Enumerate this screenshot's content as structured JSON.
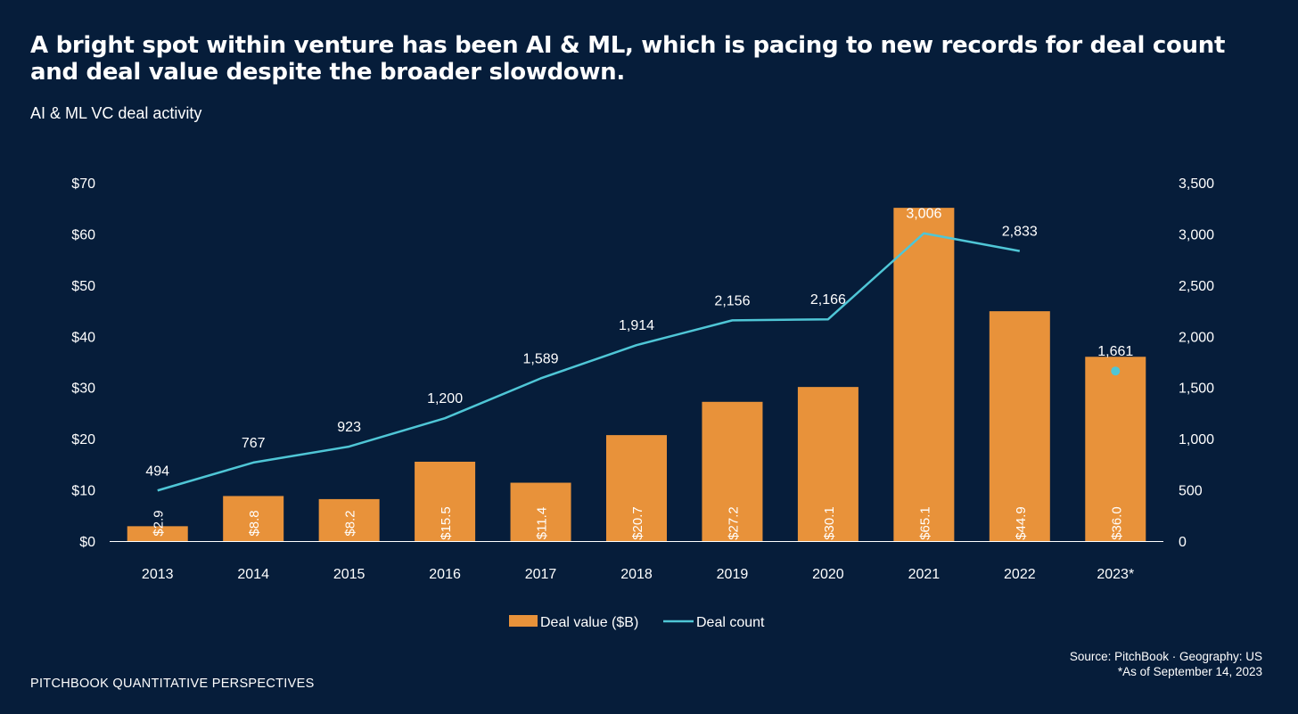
{
  "header": {
    "headline": "A bright spot within venture has been AI & ML, which is pacing to new records for deal count and deal value despite the broader slowdown.",
    "subtitle": "AI & ML VC deal activity"
  },
  "footer": {
    "brand": "PITCHBOOK QUANTITATIVE PERSPECTIVES",
    "source": "Source: PitchBook · Geography: US",
    "note": "*As of September 14, 2023"
  },
  "colors": {
    "background": "#061d3a",
    "bar": "#e8923a",
    "line": "#4fc6d6",
    "text": "#ffffff"
  },
  "chart_data": {
    "type": "bar+line",
    "categories": [
      "2013",
      "2014",
      "2015",
      "2016",
      "2017",
      "2018",
      "2019",
      "2020",
      "2021",
      "2022",
      "2023*"
    ],
    "series": [
      {
        "name": "Deal value ($B)",
        "type": "bar",
        "axis": "left",
        "values": [
          2.9,
          8.8,
          8.2,
          15.5,
          11.4,
          20.7,
          27.2,
          30.1,
          65.1,
          44.9,
          36.0
        ],
        "labels": [
          "$2.9",
          "$8.8",
          "$8.2",
          "$15.5",
          "$11.4",
          "$20.7",
          "$27.2",
          "$30.1",
          "$65.1",
          "$44.9",
          "$36.0"
        ]
      },
      {
        "name": "Deal count",
        "type": "line",
        "axis": "right",
        "values": [
          494,
          767,
          923,
          1200,
          1589,
          1914,
          2156,
          2166,
          3006,
          2833,
          1661
        ],
        "labels": [
          "494",
          "767",
          "923",
          "1,200",
          "1,589",
          "1,914",
          "2,156",
          "2,166",
          "3,006",
          "2,833",
          "1,661"
        ],
        "line_break_before_last": true
      }
    ],
    "y_left": {
      "range": [
        0,
        70
      ],
      "ticks": [
        0,
        10,
        20,
        30,
        40,
        50,
        60,
        70
      ],
      "tick_labels": [
        "$0",
        "$10",
        "$20",
        "$30",
        "$40",
        "$50",
        "$60",
        "$70"
      ]
    },
    "y_right": {
      "range": [
        0,
        3500
      ],
      "ticks": [
        0,
        500,
        1000,
        1500,
        2000,
        2500,
        3000,
        3500
      ],
      "tick_labels": [
        "0",
        "500",
        "1,000",
        "1,500",
        "2,000",
        "2,500",
        "3,000",
        "3,500"
      ]
    },
    "grid": false,
    "legend": "bottom-center"
  }
}
